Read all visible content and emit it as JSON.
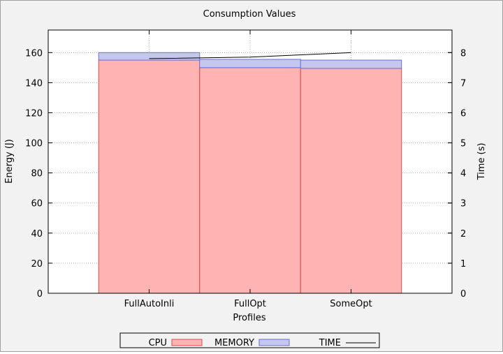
{
  "chart_data": {
    "type": "bar",
    "title": "Consumption Values",
    "xlabel": "Profiles",
    "ylabel": "Energy (J)",
    "y2label": "Time (s)",
    "categories": [
      "FullAutoInli",
      "FullOpt",
      "SomeOpt"
    ],
    "ylim": [
      0,
      175
    ],
    "y2lim": [
      0,
      8.75
    ],
    "yticks": [
      0,
      20,
      40,
      60,
      80,
      100,
      120,
      140,
      160
    ],
    "y2ticks": [
      0,
      1,
      2,
      3,
      4,
      5,
      6,
      7,
      8
    ],
    "stacked": true,
    "grid": true,
    "legend_position": "bottom",
    "series": [
      {
        "name": "CPU",
        "values": [
          155,
          150,
          149.5
        ],
        "color": "#ffb3b3",
        "stroke": "#d94a4a",
        "axis": "left"
      },
      {
        "name": "MEMORY",
        "values": [
          5,
          5.5,
          5.5
        ],
        "color": "#c4c8ef",
        "stroke": "#6a6fd0",
        "axis": "left"
      },
      {
        "name": "TIME",
        "type": "line",
        "values": [
          7.8,
          7.85,
          8.0
        ],
        "color": "#000000",
        "axis": "right"
      }
    ]
  }
}
